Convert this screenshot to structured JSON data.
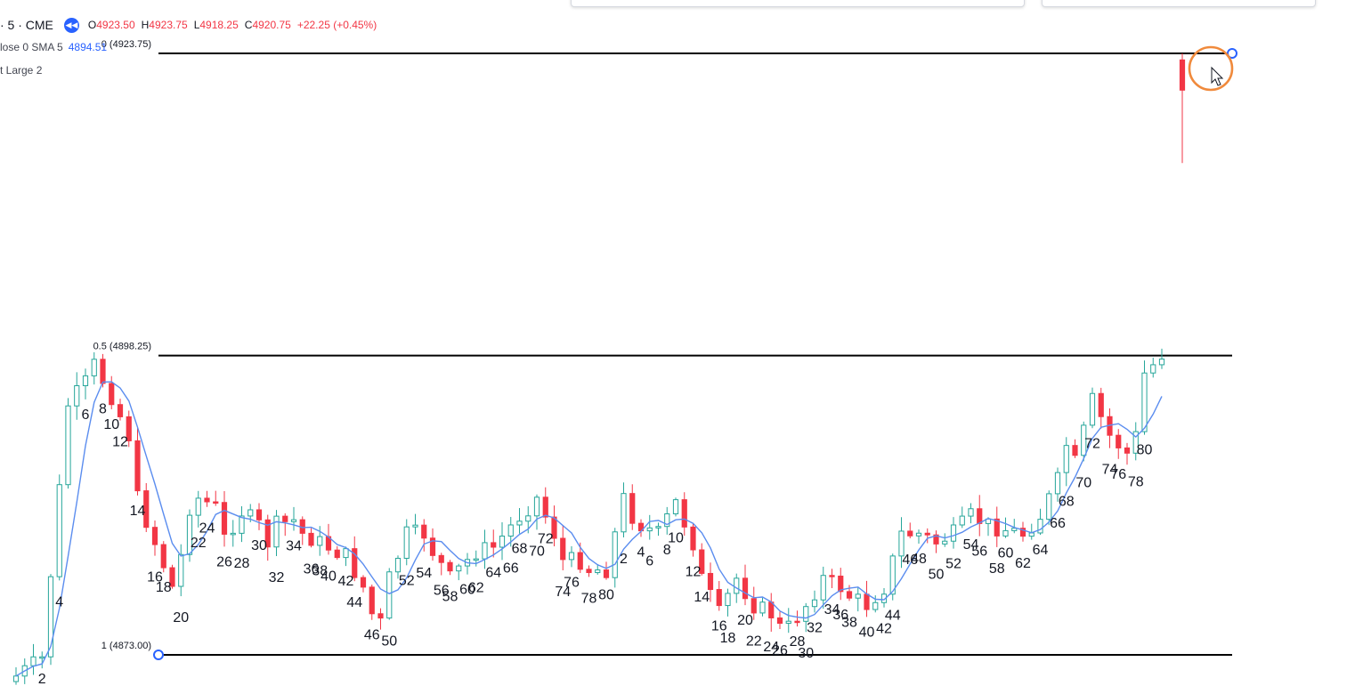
{
  "header": {
    "symbol": "· 5 · CME",
    "ohlc": [
      {
        "key": "O",
        "value": "4923.50"
      },
      {
        "key": "H",
        "value": "4923.75"
      },
      {
        "key": "L",
        "value": "4918.25"
      },
      {
        "key": "C",
        "value": "4920.75"
      }
    ],
    "change": "+22.25 (+0.45%)",
    "sma_label": "lose 0 SMA 5",
    "sma_value": "4894.51",
    "indicator_label": "t Large 2"
  },
  "colors": {
    "up": "#26a69a",
    "down": "#f23645",
    "sma": "#5b8def",
    "fib_line": "#000000",
    "anchor": "#2962ff",
    "cursor_circle": "#f08a3c"
  },
  "icons": [
    "rewind-icon",
    "cursor-icon"
  ],
  "chart_data": {
    "type": "candlestick",
    "title": "",
    "xlabel": "",
    "ylabel": "",
    "ylim": [
      4865.8,
      4926.8
    ],
    "fib_levels": [
      {
        "label": "0 (4923.75)",
        "ratio": 0,
        "value": 4923.75
      },
      {
        "label": "0.5 (4898.25)",
        "ratio": 0.5,
        "value": 4898.25
      },
      {
        "label": "1 (4873.00)",
        "ratio": 1,
        "value": 4873.0
      }
    ],
    "sma_period": 5,
    "last_bar": {
      "open": 4923.5,
      "high": 4923.75,
      "low": 4918.25,
      "close": 4920.75
    },
    "bar_count_labels": [
      {
        "i": 3,
        "label": "2"
      },
      {
        "i": 5,
        "label": "4"
      },
      {
        "i": 8,
        "label": "6"
      },
      {
        "i": 10,
        "label": "8"
      },
      {
        "i": 11,
        "label": "10"
      },
      {
        "i": 12,
        "label": "12"
      },
      {
        "i": 14,
        "label": "14"
      },
      {
        "i": 16,
        "label": "16"
      },
      {
        "i": 17,
        "label": "18"
      },
      {
        "i": 19,
        "label": "20"
      },
      {
        "i": 21,
        "label": "22"
      },
      {
        "i": 22,
        "label": "24"
      },
      {
        "i": 24,
        "label": "26"
      },
      {
        "i": 26,
        "label": "28"
      },
      {
        "i": 28,
        "label": "30"
      },
      {
        "i": 30,
        "label": "32"
      },
      {
        "i": 32,
        "label": "34"
      },
      {
        "i": 34,
        "label": "36"
      },
      {
        "i": 35,
        "label": "38"
      },
      {
        "i": 36,
        "label": "40"
      },
      {
        "i": 38,
        "label": "42"
      },
      {
        "i": 39,
        "label": "44"
      },
      {
        "i": 41,
        "label": "46"
      },
      {
        "i": 43,
        "label": "50"
      },
      {
        "i": 45,
        "label": "52"
      },
      {
        "i": 47,
        "label": "54"
      },
      {
        "i": 49,
        "label": "56"
      },
      {
        "i": 50,
        "label": "58"
      },
      {
        "i": 52,
        "label": "60"
      },
      {
        "i": 53,
        "label": "62"
      },
      {
        "i": 55,
        "label": "64"
      },
      {
        "i": 57,
        "label": "66"
      },
      {
        "i": 58,
        "label": "68"
      },
      {
        "i": 60,
        "label": "70"
      },
      {
        "i": 61,
        "label": "72"
      },
      {
        "i": 63,
        "label": "74"
      },
      {
        "i": 64,
        "label": "76"
      },
      {
        "i": 66,
        "label": "78"
      },
      {
        "i": 68,
        "label": "80"
      },
      {
        "i": 70,
        "label": "2"
      },
      {
        "i": 72,
        "label": "4"
      },
      {
        "i": 73,
        "label": "6"
      },
      {
        "i": 75,
        "label": "8"
      },
      {
        "i": 76,
        "label": "10"
      },
      {
        "i": 78,
        "label": "12"
      },
      {
        "i": 79,
        "label": "14"
      },
      {
        "i": 81,
        "label": "16"
      },
      {
        "i": 82,
        "label": "18"
      },
      {
        "i": 84,
        "label": "20"
      },
      {
        "i": 85,
        "label": "22"
      },
      {
        "i": 87,
        "label": "24"
      },
      {
        "i": 88,
        "label": "26"
      },
      {
        "i": 90,
        "label": "28"
      },
      {
        "i": 91,
        "label": "30"
      },
      {
        "i": 92,
        "label": "32"
      },
      {
        "i": 94,
        "label": "34"
      },
      {
        "i": 95,
        "label": "36"
      },
      {
        "i": 96,
        "label": "38"
      },
      {
        "i": 98,
        "label": "40"
      },
      {
        "i": 100,
        "label": "42"
      },
      {
        "i": 101,
        "label": "44"
      },
      {
        "i": 103,
        "label": "46"
      },
      {
        "i": 104,
        "label": "48"
      },
      {
        "i": 106,
        "label": "50"
      },
      {
        "i": 108,
        "label": "52"
      },
      {
        "i": 110,
        "label": "54"
      },
      {
        "i": 111,
        "label": "56"
      },
      {
        "i": 113,
        "label": "58"
      },
      {
        "i": 114,
        "label": "60"
      },
      {
        "i": 116,
        "label": "62"
      },
      {
        "i": 118,
        "label": "64"
      },
      {
        "i": 120,
        "label": "66"
      },
      {
        "i": 121,
        "label": "68"
      },
      {
        "i": 123,
        "label": "70"
      },
      {
        "i": 124,
        "label": "72"
      },
      {
        "i": 126,
        "label": "74"
      },
      {
        "i": 127,
        "label": "76"
      },
      {
        "i": 129,
        "label": "78"
      },
      {
        "i": 130,
        "label": "80"
      }
    ]
  }
}
